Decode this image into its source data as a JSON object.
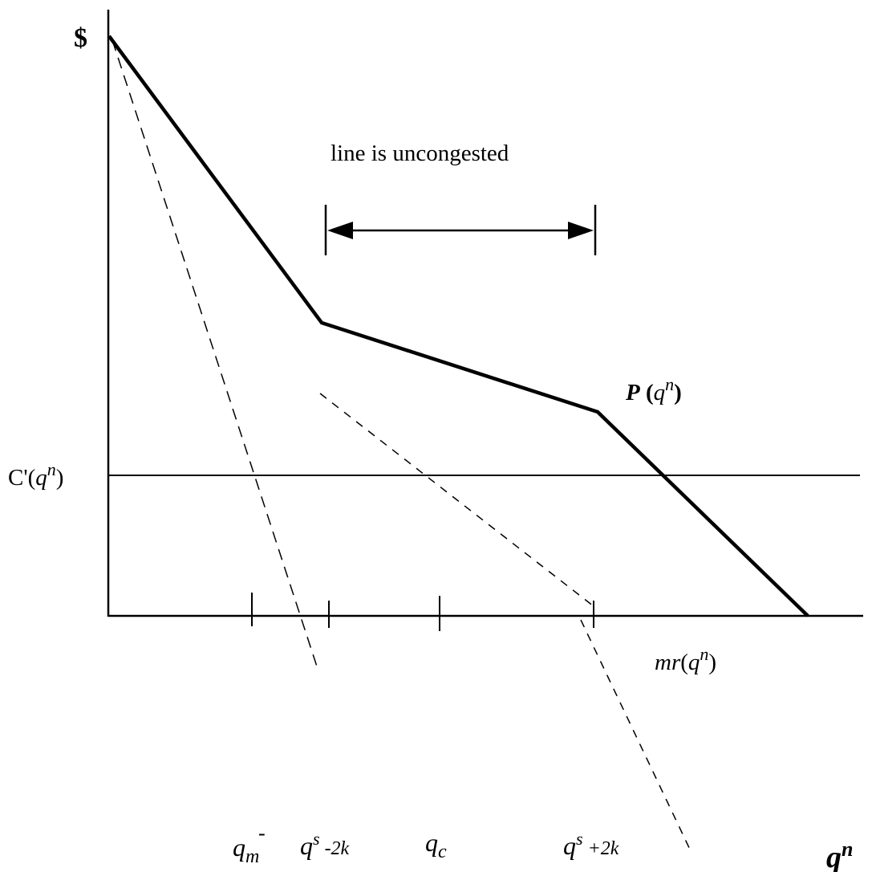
{
  "labels": {
    "y_axis": "$",
    "x_axis_base": "q",
    "x_axis_sup": "n",
    "cost_prefix": "C'(",
    "cost_var": "q",
    "cost_sup": "n",
    "cost_suffix": ")",
    "price_name": "P",
    "price_open": " (",
    "price_var": "q",
    "price_sup": "n",
    "price_close": ")",
    "mr_name": "mr",
    "mr_open": "(",
    "mr_var": "q",
    "mr_sup": "n",
    "mr_close": ")",
    "uncongested_note": "line is uncongested"
  },
  "ticks": {
    "q_m_base": "q",
    "q_m_sub": "m",
    "q_m_bar": "-",
    "qs_minus_base": "q",
    "qs_minus_sup": "s",
    "qs_minus_rest": " -2k",
    "q_c_base": "q",
    "q_c_sub": "c",
    "qs_plus_base": "q",
    "qs_plus_sup": "s",
    "qs_plus_rest": " +2k"
  }
}
